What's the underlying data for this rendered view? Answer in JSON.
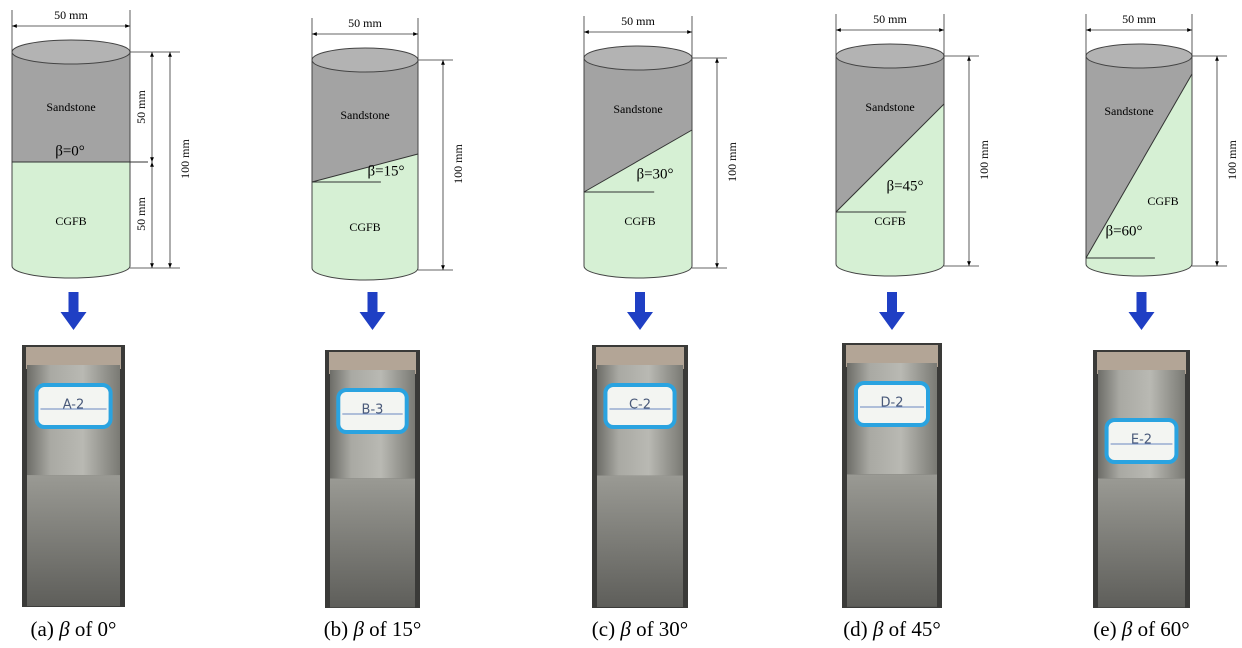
{
  "panels": [
    {
      "width_label": "50 mm",
      "height_label": "100 mm",
      "upper_half_label": "50 mm",
      "lower_half_label": "50 mm",
      "top_label": "Sandstone",
      "bottom_label": "CGFB",
      "angle_label": "β=0°",
      "sample_label": "A-2",
      "caption": {
        "letter": "(a)",
        "symbol": "β",
        "text": "of 0°"
      }
    },
    {
      "width_label": "50 mm",
      "height_label": "100 mm",
      "top_label": "Sandstone",
      "bottom_label": "CGFB",
      "angle_label": "β=15°",
      "sample_label": "B-3",
      "caption": {
        "letter": "(b)",
        "symbol": "β",
        "text": "of 15°"
      }
    },
    {
      "width_label": "50 mm",
      "height_label": "100 mm",
      "top_label": "Sandstone",
      "bottom_label": "CGFB",
      "angle_label": "β=30°",
      "sample_label": "C-2",
      "caption": {
        "letter": "(c)",
        "symbol": "β",
        "text": "of 30°"
      }
    },
    {
      "width_label": "50 mm",
      "height_label": "100 mm",
      "top_label": "Sandstone",
      "bottom_label": "CGFB",
      "angle_label": "β=45°",
      "sample_label": "D-2",
      "caption": {
        "letter": "(d)",
        "symbol": "β",
        "text": "of 45°"
      }
    },
    {
      "width_label": "50 mm",
      "height_label": "100 mm",
      "top_label": "Sandstone",
      "bottom_label": "CGFB",
      "angle_label": "β=60°",
      "sample_label": "E-2",
      "caption": {
        "letter": "(e)",
        "symbol": "β",
        "text": "of 60°"
      }
    }
  ]
}
